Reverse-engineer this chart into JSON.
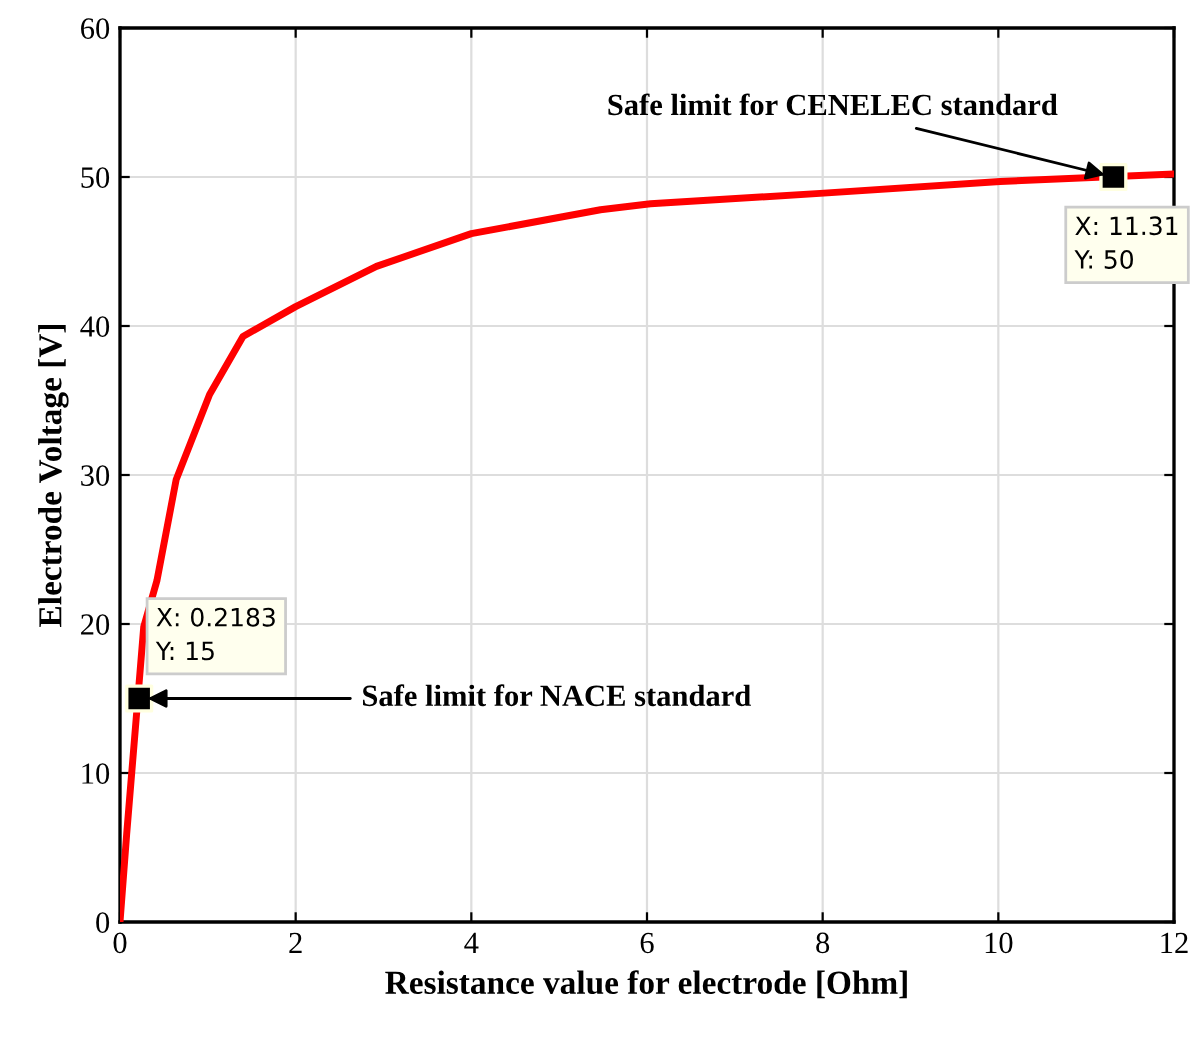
{
  "chart_data": {
    "type": "line",
    "xlabel": "Resistance value for electrode [Ohm]",
    "ylabel": "Electrode Voltage [V]",
    "xlim": [
      0,
      12
    ],
    "xticks": [
      0,
      2,
      4,
      6,
      8,
      10,
      12
    ],
    "ylim": [
      0,
      60
    ],
    "yticks": [
      0,
      10,
      20,
      30,
      40,
      50,
      60
    ],
    "grid": true,
    "legend": false,
    "series": [
      {
        "color": "#ff0000",
        "marker": "none",
        "x": [
          0,
          0.076,
          0.27,
          0.42,
          0.64,
          1.02,
          1.4,
          2.0,
          2.92,
          4.0,
          5.47,
          6.04,
          7.97,
          10.02,
          12
        ],
        "values": [
          0,
          5.9,
          19.8,
          22.9,
          29.7,
          35.4,
          39.3,
          41.3,
          44.0,
          46.2,
          47.8,
          48.2,
          48.9,
          49.7,
          50.2
        ]
      },
      {
        "type": "scatter",
        "color": "#000000",
        "marker": "square",
        "x": [
          0.2183,
          11.31
        ],
        "values": [
          15,
          50
        ]
      }
    ],
    "annotations": [
      "X: 0.2183\nY: 15",
      {
        "text": "Safe limit for NACE standard",
        "x": 0.2183,
        "y": 15
      },
      "X: 11.31\nY: 50",
      {
        "text": "Safe limit for CENELEC standard",
        "x": 11.31,
        "y": 50
      }
    ]
  }
}
